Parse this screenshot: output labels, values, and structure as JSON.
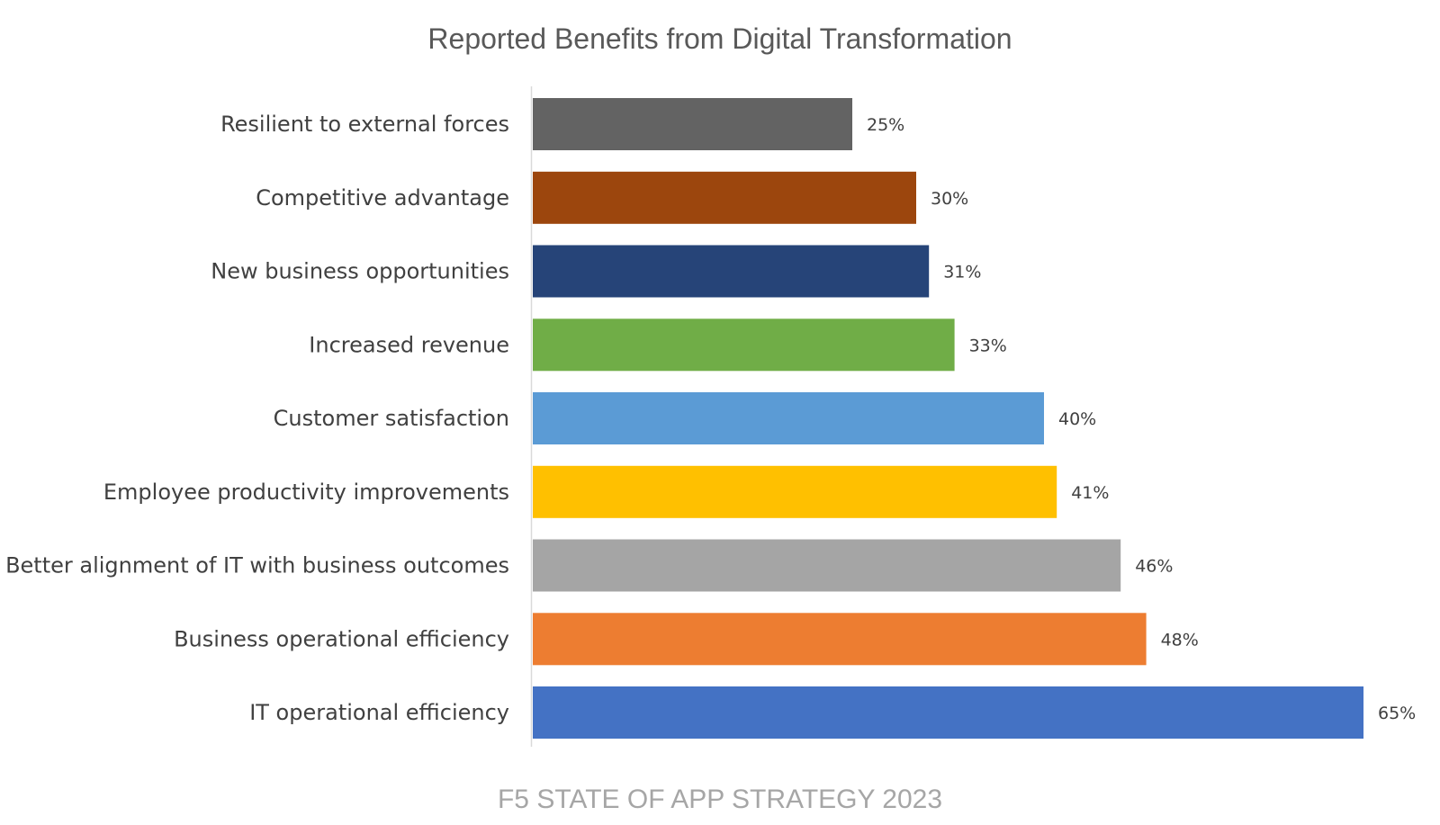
{
  "chart_data": {
    "type": "bar",
    "orientation": "horizontal",
    "title": "Reported Benefits from Digital Transformation",
    "categories": [
      "Resilient to external forces",
      "Competitive advantage",
      "New business opportunities",
      "Increased revenue",
      "Customer satisfaction",
      "Employee productivity improvements",
      "Better alignment of IT with business outcomes",
      "Business operational efficiency",
      "IT operational efficiency"
    ],
    "values": [
      25,
      30,
      31,
      33,
      40,
      41,
      46,
      48,
      65
    ],
    "value_labels": [
      "25%",
      "30%",
      "31%",
      "33%",
      "40%",
      "41%",
      "46%",
      "48%",
      "65%"
    ],
    "colors": [
      "#636363",
      "#9C460D",
      "#264478",
      "#70AD47",
      "#5B9BD5",
      "#FFC000",
      "#A5A5A5",
      "#ED7D31",
      "#4472C4"
    ],
    "xlabel": "",
    "ylabel": "",
    "xlim": [
      0,
      65
    ],
    "grid": false,
    "legend": "none",
    "source_note": "F5 STATE OF APP STRATEGY 2023"
  }
}
